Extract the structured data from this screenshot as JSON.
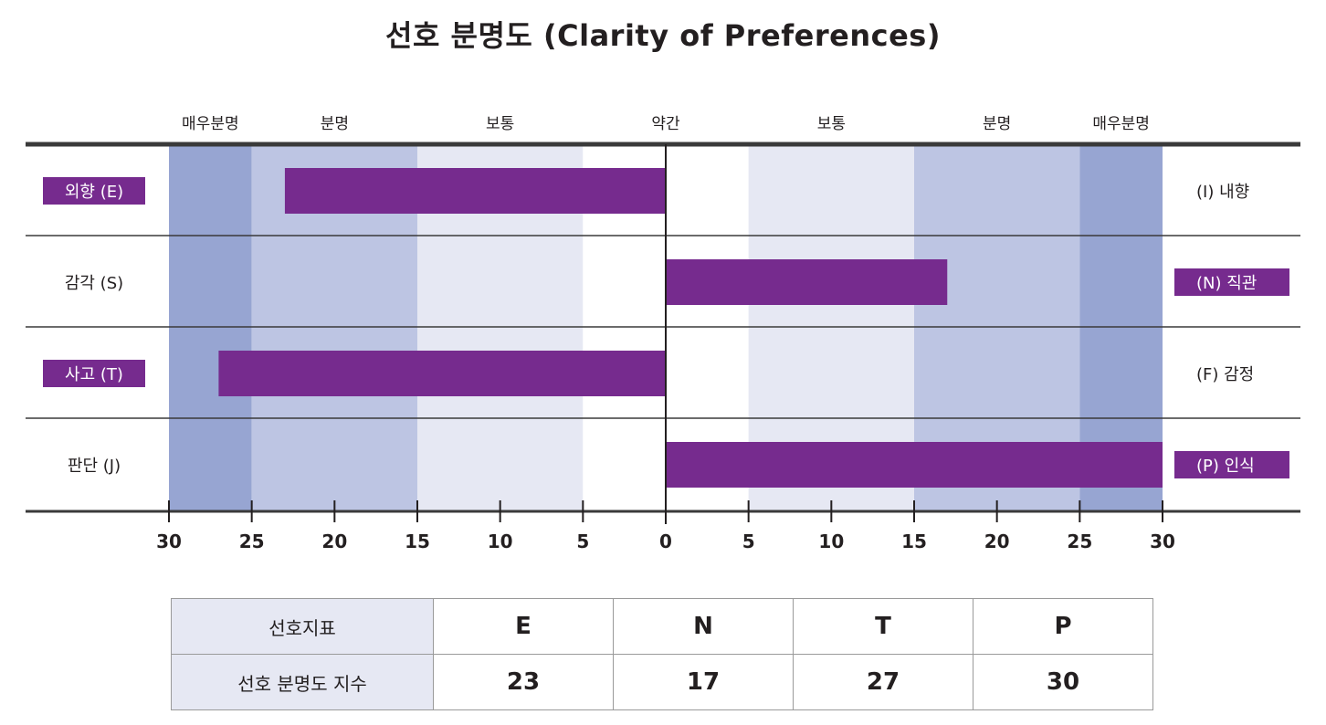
{
  "title": "선호 분명도 (Clarity of Preferences)",
  "chart_data": {
    "type": "bar",
    "orientation": "diverging-horizontal",
    "axis": {
      "range": [
        -30,
        30
      ],
      "ticks": [
        -30,
        -25,
        -20,
        -15,
        -10,
        -5,
        0,
        5,
        10,
        15,
        20,
        25,
        30
      ],
      "tick_labels": [
        "30",
        "25",
        "20",
        "15",
        "10",
        "5",
        "0",
        "5",
        "10",
        "15",
        "20",
        "25",
        "30"
      ]
    },
    "zones": [
      {
        "label": "매우분명",
        "from": -30,
        "to": -25,
        "color": "#97a5d2"
      },
      {
        "label": "분명",
        "from": -25,
        "to": -15,
        "color": "#bdc5e3"
      },
      {
        "label": "보통",
        "from": -15,
        "to": -5,
        "color": "#e6e8f3"
      },
      {
        "label": "약간",
        "from": -5,
        "to": 5,
        "color": "#ffffff"
      },
      {
        "label": "보통",
        "from": 5,
        "to": 15,
        "color": "#e6e8f3"
      },
      {
        "label": "분명",
        "from": 15,
        "to": 25,
        "color": "#bdc5e3"
      },
      {
        "label": "매우분명",
        "from": 25,
        "to": 30,
        "color": "#97a5d2"
      }
    ],
    "rows": [
      {
        "left_label": "외향 (E)",
        "right_label": "(I) 내향",
        "value": -23,
        "highlight": "left"
      },
      {
        "left_label": "감각 (S)",
        "right_label": "(N) 직관",
        "value": 17,
        "highlight": "right"
      },
      {
        "left_label": "사고 (T)",
        "right_label": "(F) 감정",
        "value": -27,
        "highlight": "left"
      },
      {
        "left_label": "판단 (J)",
        "right_label": "(P) 인식",
        "value": 30,
        "highlight": "right"
      }
    ],
    "bar_color": "#762b8e",
    "highlight_color": "#762b8e"
  },
  "table": {
    "row1_header": "선호지표",
    "row2_header": "선호 분명도 지수",
    "letters": [
      "E",
      "N",
      "T",
      "P"
    ],
    "scores": [
      "23",
      "17",
      "27",
      "30"
    ]
  }
}
